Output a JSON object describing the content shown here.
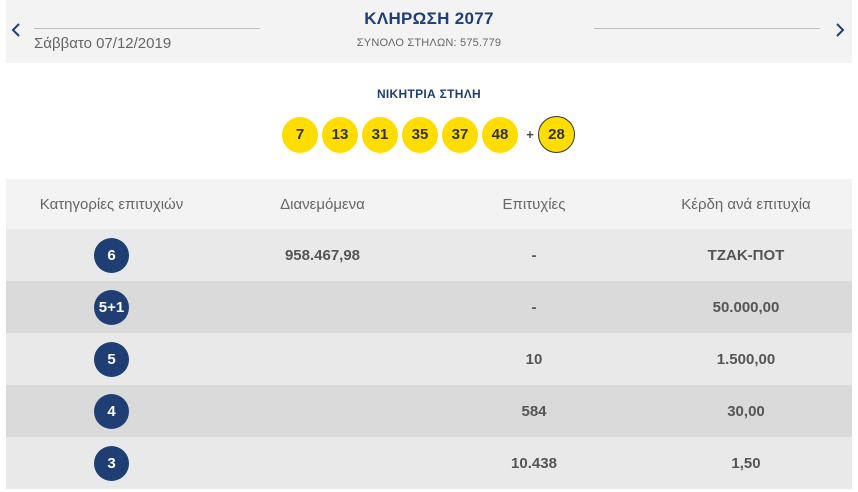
{
  "header": {
    "title": "ΚΛΗΡΩΣΗ 2077",
    "date": "Σάββατο 07/12/2019",
    "total_columns": "ΣΥΝΟΛΟ ΣΤΗΛΩΝ: 575.779"
  },
  "winning": {
    "label": "ΝΙΚΗΤΡΙΑ ΣΤΗΛΗ",
    "numbers": [
      "7",
      "13",
      "31",
      "35",
      "37",
      "48"
    ],
    "plus": "+",
    "bonus": "28",
    "ball_color": "#ffdd00"
  },
  "table": {
    "headers": [
      "Κατηγορίες επιτυχιών",
      "Διανεμόμενα",
      "Επιτυχίες",
      "Κέρδη ανά επιτυχία"
    ],
    "rows": [
      {
        "category": "6",
        "distributed": "958.467,98",
        "winners": "-",
        "prize": "ΤΖΑΚ-ΠΟΤ"
      },
      {
        "category": "5+1",
        "distributed": "",
        "winners": "-",
        "prize": "50.000,00"
      },
      {
        "category": "5",
        "distributed": "",
        "winners": "10",
        "prize": "1.500,00"
      },
      {
        "category": "4",
        "distributed": "",
        "winners": "584",
        "prize": "30,00"
      },
      {
        "category": "3",
        "distributed": "",
        "winners": "10.438",
        "prize": "1,50"
      }
    ],
    "badge_color": "#1f3e74"
  },
  "icons": {
    "prev": "chevron-left-icon",
    "next": "chevron-right-icon"
  }
}
